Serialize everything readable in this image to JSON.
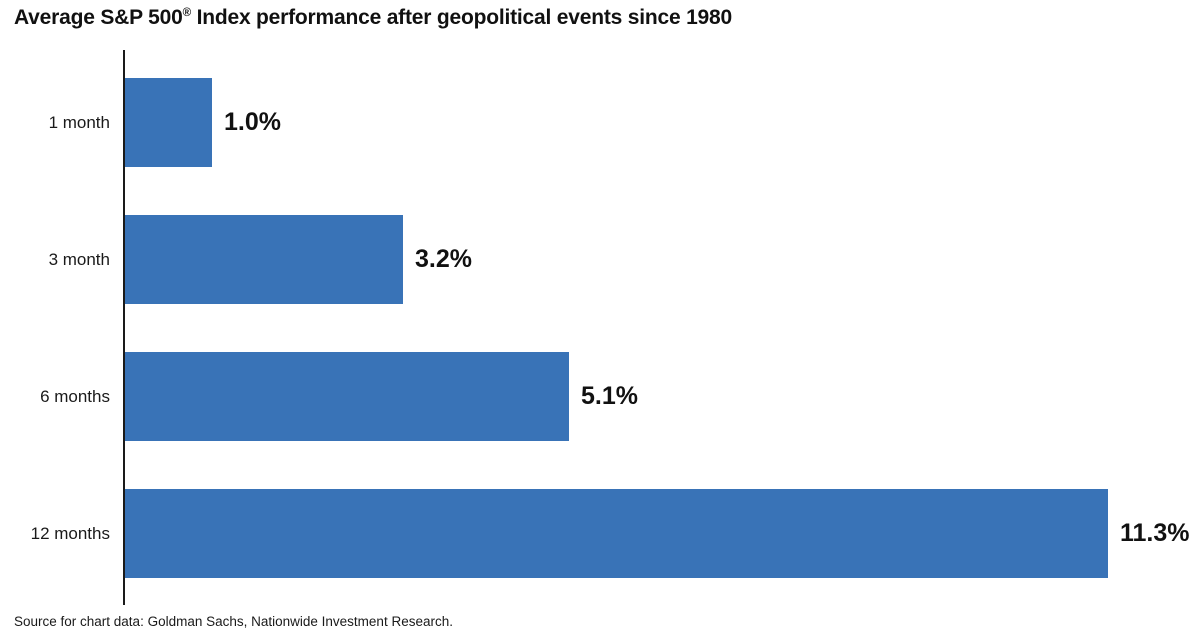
{
  "title": {
    "prefix": "Average S&P 500",
    "reg_mark": "®",
    "suffix": " Index performance after geopolitical events since 1980",
    "full": "Average S&P 500® Index performance after geopolitical events since 1980"
  },
  "source": "Source for chart data: Goldman Sachs, Nationwide Investment Research.",
  "colors": {
    "bar": "#3973B7",
    "axis": "#1a1a1a",
    "text": "#111111",
    "background": "#ffffff"
  },
  "chart_data": {
    "type": "bar",
    "orientation": "horizontal",
    "title": "Average S&P 500® Index performance after geopolitical events since 1980",
    "categories": [
      "1 month",
      "3 month",
      "6 months",
      "12 months"
    ],
    "values": [
      1.0,
      3.2,
      5.1,
      11.3
    ],
    "value_labels": [
      "1.0%",
      "3.2%",
      "5.1%",
      "11.3%"
    ],
    "xlabel": "",
    "ylabel": "",
    "xlim": [
      0,
      12
    ],
    "grid": false,
    "legend": null,
    "annotations": [
      "Source for chart data: Goldman Sachs, Nationwide Investment Research."
    ]
  }
}
